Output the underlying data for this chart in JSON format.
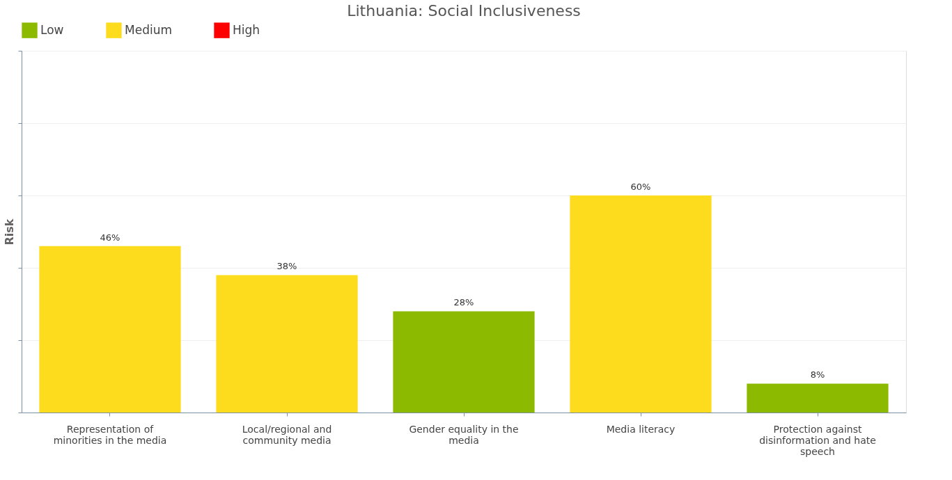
{
  "chart_data": {
    "type": "bar",
    "title": "Lithuania: Social Inclusiveness",
    "ylabel": "Risk",
    "categories": [
      "Representation of minorities in the media",
      "Local/regional and community media",
      "Gender equality in the media",
      "Media literacy",
      "Protection against disinformation and hate speech"
    ],
    "series": [
      {
        "name": "Low",
        "color": "#8cba00",
        "values": [
          null,
          null,
          28,
          null,
          8
        ],
        "value_labels": [
          null,
          null,
          "28%",
          null,
          "8%"
        ]
      },
      {
        "name": "Medium",
        "color": "#fcdc1c",
        "values": [
          46,
          38,
          null,
          60,
          null
        ],
        "value_labels": [
          "46%",
          "38%",
          null,
          "60%",
          null
        ]
      },
      {
        "name": "High",
        "color": "#ff0000",
        "values": [
          null,
          null,
          null,
          null,
          null
        ],
        "value_labels": [
          null,
          null,
          null,
          null,
          null
        ]
      }
    ],
    "ylim": [
      0,
      100
    ],
    "yticks": [
      {
        "value": 0,
        "label": null
      },
      {
        "value": 20,
        "label": null
      },
      {
        "value": 40,
        "label": null
      },
      {
        "value": 60,
        "label": null
      },
      {
        "value": 80,
        "label": null
      },
      {
        "value": 100,
        "label": null
      }
    ],
    "tick_labels": "x",
    "grid": "y",
    "legend": "top left"
  }
}
